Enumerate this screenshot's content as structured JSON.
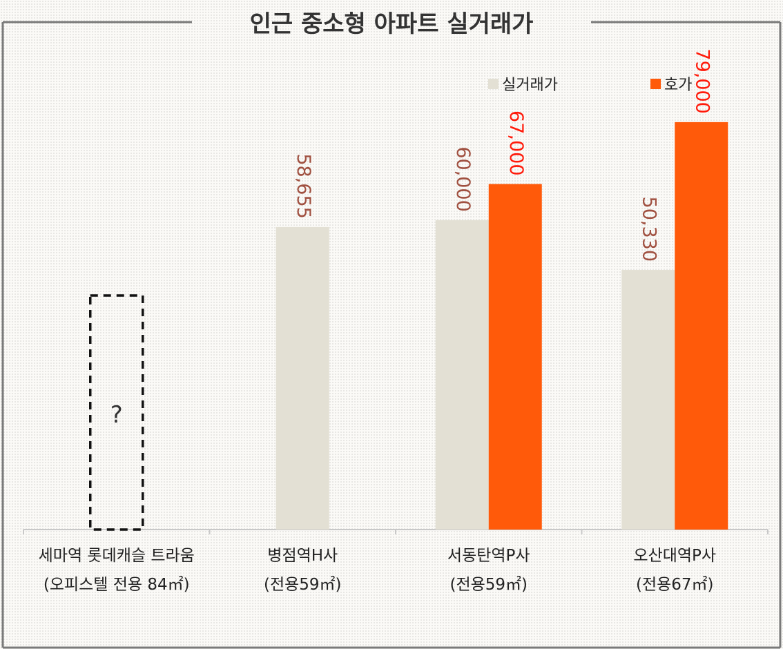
{
  "chart_data": {
    "type": "bar",
    "title": "인근 중소형 아파트 실거래가",
    "categories": [
      [
        "세마역 롯데캐슬 트라움",
        "(오피스텔 전용 84㎡)"
      ],
      [
        "병점역H사",
        "(전용59㎡)"
      ],
      [
        "서동탄역P사",
        "(전용59㎡)"
      ],
      [
        "오산대역P사",
        "(전용67㎡)"
      ]
    ],
    "series": [
      {
        "name": "실거래가",
        "values": [
          null,
          58655,
          60000,
          50330
        ],
        "labels": [
          "",
          "58,655",
          "60,000",
          "50,330"
        ]
      },
      {
        "name": "호가",
        "values": [
          null,
          null,
          67000,
          79000
        ],
        "labels": [
          "",
          "",
          "67,000",
          "79,000"
        ]
      }
    ],
    "placeholder": {
      "category_index": 0,
      "text": "?"
    },
    "ylim": [
      0,
      100000
    ],
    "legend": "top-right",
    "grid": false
  },
  "colors": {
    "actual": "#e3e0d4",
    "asking": "#ff5a0a",
    "actual_label": "#a05040",
    "asking_label": "#ff1a0a",
    "title": "#333333",
    "frame": "#7a7a7a",
    "axis": "#c8c8c8",
    "text": "#222222"
  }
}
